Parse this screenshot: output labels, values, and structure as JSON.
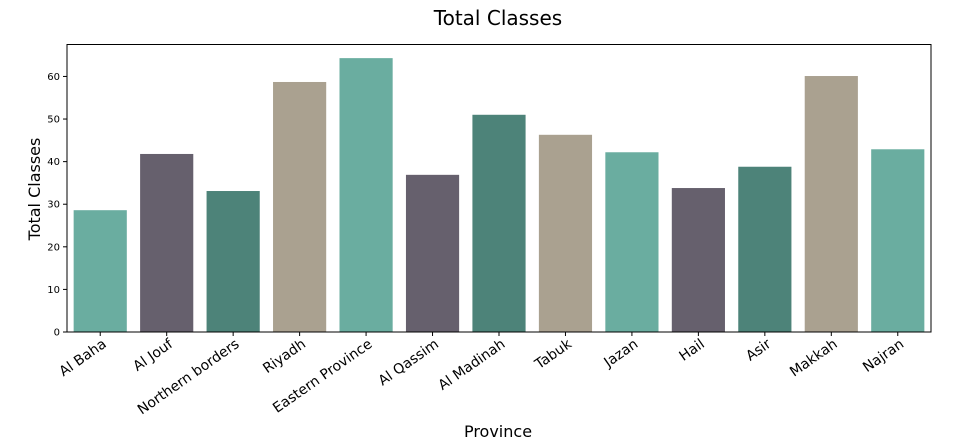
{
  "chart_data": {
    "type": "bar",
    "title": "Total Classes",
    "xlabel": "Province",
    "ylabel": "Total Classes",
    "categories": [
      "Al Baha",
      "Al Jouf",
      "Northern borders",
      "Riyadh",
      "Eastern Province",
      "Al Qassim",
      "Al Madinah",
      "Tabuk",
      "Jazan",
      "Hail",
      "Asir",
      "Makkah",
      "Najran"
    ],
    "values": [
      28.6,
      41.8,
      33.1,
      58.7,
      64.3,
      36.9,
      51.0,
      46.3,
      42.2,
      33.8,
      38.8,
      60.1,
      42.9
    ],
    "colors": [
      "#6aada0",
      "#66606d",
      "#4d8379",
      "#aaa190",
      "#6aada0",
      "#66606d",
      "#4d8379",
      "#aaa190",
      "#6aada0",
      "#66606d",
      "#4d8379",
      "#aaa190",
      "#6aada0"
    ],
    "ylim": [
      0,
      67.5
    ],
    "yticks": [
      "0",
      "10",
      "20",
      "30",
      "40",
      "50",
      "60"
    ],
    "grid": false,
    "legend": "none"
  }
}
